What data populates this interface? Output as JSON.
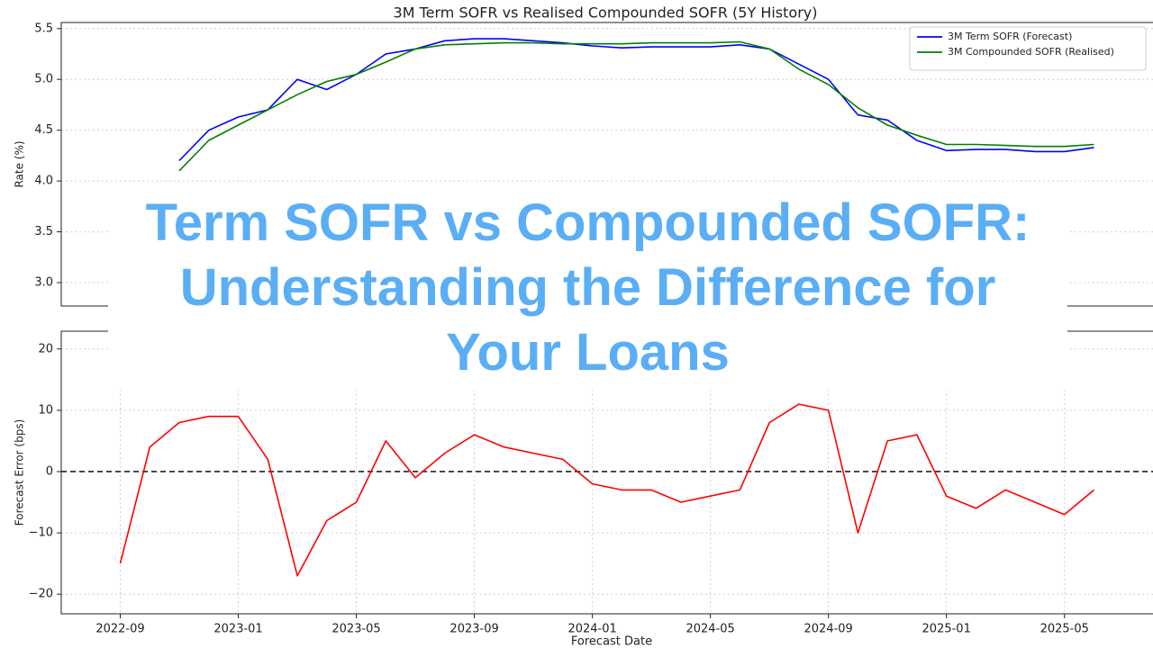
{
  "chart_data": [
    {
      "type": "line",
      "title": "3M Term SOFR vs Realised Compounded SOFR (5Y History)",
      "ylabel": "Rate (%)",
      "x": [
        "2022-09",
        "2022-10",
        "2022-11",
        "2022-12",
        "2023-01",
        "2023-02",
        "2023-03",
        "2023-04",
        "2023-05",
        "2023-06",
        "2023-07",
        "2023-08",
        "2023-09",
        "2023-10",
        "2023-11",
        "2023-12",
        "2024-01",
        "2024-02",
        "2024-03",
        "2024-04",
        "2024-05",
        "2024-06",
        "2024-07",
        "2024-08",
        "2024-09",
        "2024-10",
        "2024-11",
        "2024-12",
        "2025-01",
        "2025-02",
        "2025-03",
        "2025-04",
        "2025-05",
        "2025-06"
      ],
      "series": [
        {
          "name": "3M Term SOFR (Forecast)",
          "color": "#0000ff",
          "values": [
            null,
            null,
            4.2,
            4.5,
            4.63,
            4.7,
            5.0,
            4.9,
            5.05,
            5.25,
            5.3,
            5.38,
            5.4,
            5.4,
            5.38,
            5.36,
            5.33,
            5.31,
            5.32,
            5.32,
            5.32,
            5.34,
            5.3,
            5.15,
            5.0,
            4.65,
            4.6,
            4.4,
            4.3,
            4.31,
            4.31,
            4.29,
            4.29,
            4.33
          ]
        },
        {
          "name": "3M Compounded SOFR (Realised)",
          "color": "#008000",
          "values": [
            null,
            null,
            4.1,
            4.4,
            4.55,
            4.7,
            4.85,
            4.98,
            5.05,
            5.17,
            5.3,
            5.34,
            5.35,
            5.36,
            5.36,
            5.35,
            5.35,
            5.35,
            5.36,
            5.36,
            5.36,
            5.37,
            5.3,
            5.1,
            4.95,
            4.72,
            4.55,
            4.45,
            4.36,
            4.36,
            4.35,
            4.34,
            4.34,
            4.36
          ]
        }
      ],
      "xlim": [
        "2022-07",
        "2025-08"
      ],
      "ylim": [
        2.77,
        5.56
      ],
      "yticks": [
        {
          "value": 3,
          "label": "3.0"
        },
        3.5,
        {
          "value": 4,
          "label": "4.0"
        },
        4.5,
        {
          "value": 5,
          "label": "5.0"
        },
        5.5
      ],
      "grid": true,
      "legend": "upper right"
    },
    {
      "type": "line",
      "ylabel": "Forecast Error (bps)",
      "xlabel": "Forecast Date",
      "x": [
        "2022-09",
        "2022-10",
        "2022-11",
        "2022-12",
        "2023-01",
        "2023-02",
        "2023-03",
        "2023-04",
        "2023-05",
        "2023-06",
        "2023-07",
        "2023-08",
        "2023-09",
        "2023-10",
        "2023-11",
        "2023-12",
        "2024-01",
        "2024-02",
        "2024-03",
        "2024-04",
        "2024-05",
        "2024-06",
        "2024-07",
        "2024-08",
        "2024-09",
        "2024-10",
        "2024-11",
        "2024-12",
        "2025-01",
        "2025-02",
        "2025-03",
        "2025-04",
        "2025-05",
        "2025-06"
      ],
      "series": [
        {
          "color": "#ff0000",
          "values": [
            -15,
            4,
            8,
            9,
            9,
            2,
            -17,
            -8,
            -5,
            5,
            -1,
            3,
            6,
            4,
            3,
            2,
            -2,
            -3,
            -3,
            -5,
            -4,
            -3,
            8,
            11,
            10,
            -10,
            5,
            6,
            -4,
            -6,
            -3,
            -5,
            -7,
            -3
          ]
        }
      ],
      "hline": 0,
      "xlim": [
        "2022-07",
        "2025-08"
      ],
      "ylim": [
        -23.2,
        22.9
      ],
      "xticks": [
        "2022-09",
        "2023-01",
        "2023-05",
        "2023-09",
        "2024-01",
        "2024-05",
        "2024-09",
        "2025-01",
        "2025-05"
      ],
      "yticks": [
        {
          "value": -20,
          "label": "−20"
        },
        {
          "value": -10,
          "label": "−10"
        },
        0,
        10,
        20
      ],
      "grid": true
    }
  ],
  "banner": {
    "lines": [
      "Term SOFR vs Compounded SOFR:",
      "Understanding the Difference for",
      "Your Loans"
    ]
  }
}
